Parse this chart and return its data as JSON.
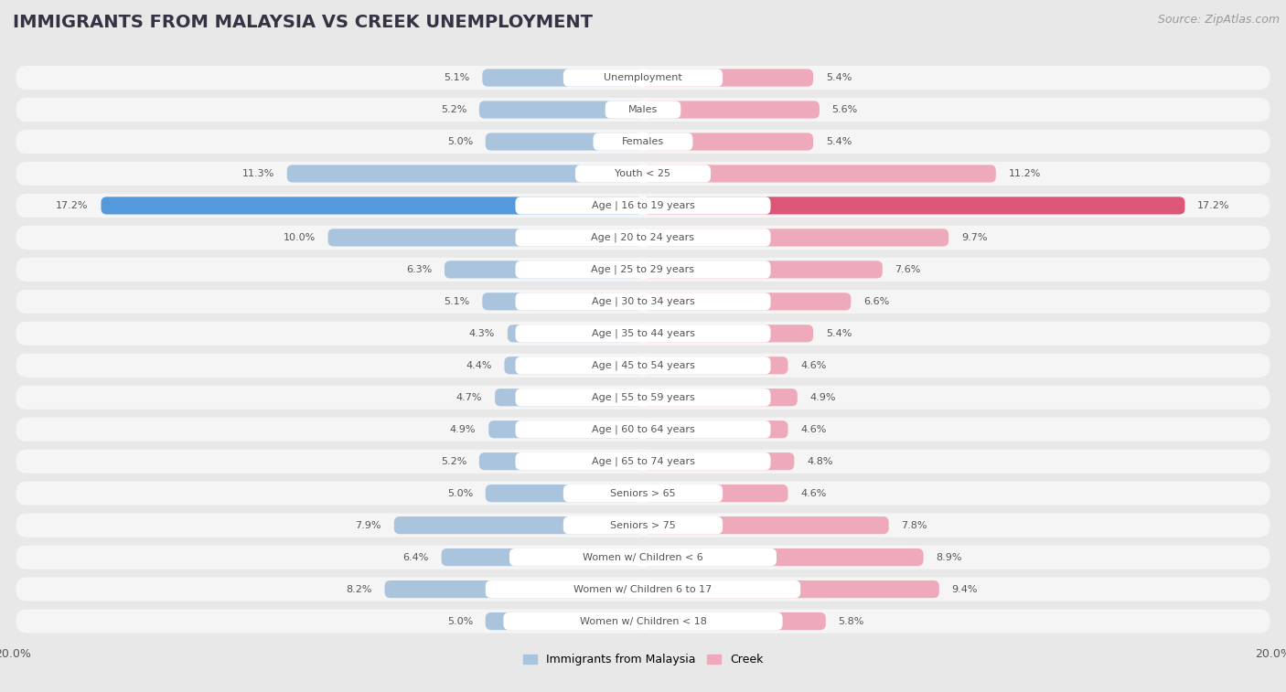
{
  "title": "IMMIGRANTS FROM MALAYSIA VS CREEK UNEMPLOYMENT",
  "source": "Source: ZipAtlas.com",
  "categories": [
    "Unemployment",
    "Males",
    "Females",
    "Youth < 25",
    "Age | 16 to 19 years",
    "Age | 20 to 24 years",
    "Age | 25 to 29 years",
    "Age | 30 to 34 years",
    "Age | 35 to 44 years",
    "Age | 45 to 54 years",
    "Age | 55 to 59 years",
    "Age | 60 to 64 years",
    "Age | 65 to 74 years",
    "Seniors > 65",
    "Seniors > 75",
    "Women w/ Children < 6",
    "Women w/ Children 6 to 17",
    "Women w/ Children < 18"
  ],
  "left_values": [
    5.1,
    5.2,
    5.0,
    11.3,
    17.2,
    10.0,
    6.3,
    5.1,
    4.3,
    4.4,
    4.7,
    4.9,
    5.2,
    5.0,
    7.9,
    6.4,
    8.2,
    5.0
  ],
  "right_values": [
    5.4,
    5.6,
    5.4,
    11.2,
    17.2,
    9.7,
    7.6,
    6.6,
    5.4,
    4.6,
    4.9,
    4.6,
    4.8,
    4.6,
    7.8,
    8.9,
    9.4,
    5.8
  ],
  "left_color": "#aac4de",
  "right_color": "#eeaabb",
  "left_highlight_color": "#5599dd",
  "right_highlight_color": "#dd5577",
  "highlight_index": 4,
  "xlim": 20.0,
  "background_color": "#e8e8e8",
  "row_bg_color": "#f5f5f5",
  "label_bg_color": "#ffffff",
  "legend_left": "Immigrants from Malaysia",
  "legend_right": "Creek",
  "title_fontsize": 14,
  "source_fontsize": 9,
  "label_fontsize": 8,
  "value_fontsize": 8,
  "axis_fontsize": 9
}
